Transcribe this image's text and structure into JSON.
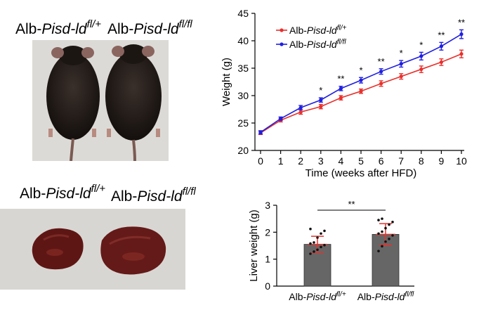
{
  "mice_panel": {
    "label_1": {
      "prefix": "Alb-",
      "gene": "Pisd-ld",
      "sup": "fl/+"
    },
    "label_2": {
      "prefix": "Alb-",
      "gene": "Pisd-ld",
      "sup": "fl/fl"
    }
  },
  "liver_panel": {
    "label_1": {
      "prefix": "Alb-",
      "gene": "Pisd-ld",
      "sup": "fl/+"
    },
    "label_2": {
      "prefix": "Alb-",
      "gene": "Pisd-ld",
      "sup": "fl/fl"
    }
  },
  "colors": {
    "control": "#e8302c",
    "knockout": "#1f1fe0",
    "bar": "#666666",
    "bar_error": "#e8302c"
  },
  "chart_data": [
    {
      "type": "line",
      "xlabel": "Time (weeks after HFD)",
      "ylabel": "Weight (g)",
      "x": [
        0,
        1,
        2,
        3,
        4,
        5,
        6,
        7,
        8,
        9,
        10
      ],
      "xlim": [
        0,
        10
      ],
      "ylim": [
        20,
        45
      ],
      "yticks": [
        20,
        25,
        30,
        35,
        40,
        45
      ],
      "legend_position": "top-left",
      "series": [
        {
          "name": "Alb-Pisd-ld fl/+",
          "legend": {
            "prefix": "Alb-",
            "gene": "Pisd-ld",
            "sup": "fl/+"
          },
          "color": "#e8302c",
          "values": [
            23.2,
            25.5,
            27.0,
            28.0,
            29.6,
            30.8,
            32.2,
            33.5,
            34.8,
            36.1,
            37.6
          ],
          "errors": [
            0.3,
            0.3,
            0.4,
            0.4,
            0.4,
            0.4,
            0.5,
            0.5,
            0.6,
            0.6,
            0.7
          ]
        },
        {
          "name": "Alb-Pisd-ld fl/fl",
          "legend": {
            "prefix": "Alb-",
            "gene": "Pisd-ld",
            "sup": "fl/fl"
          },
          "color": "#1f1fe0",
          "values": [
            23.3,
            25.8,
            27.8,
            29.2,
            31.3,
            32.8,
            34.4,
            35.8,
            37.2,
            39.0,
            41.2
          ],
          "errors": [
            0.3,
            0.3,
            0.4,
            0.4,
            0.4,
            0.5,
            0.5,
            0.6,
            0.7,
            0.7,
            0.8
          ]
        }
      ],
      "significance": [
        "",
        "",
        "",
        "*",
        "**",
        "*",
        "**",
        "*",
        "*",
        "**",
        "**"
      ]
    },
    {
      "type": "bar",
      "ylabel": "Liver weight (g)",
      "ylim": [
        0,
        3
      ],
      "yticks": [
        0,
        1,
        2,
        3
      ],
      "categories": [
        {
          "prefix": "Alb-",
          "gene": "Pisd-ld",
          "sup": "fl/+"
        },
        {
          "prefix": "Alb-",
          "gene": "Pisd-ld",
          "sup": "fl/fl"
        }
      ],
      "values": [
        1.55,
        1.92
      ],
      "errors": [
        0.3,
        0.4
      ],
      "points": [
        [
          1.2,
          1.28,
          1.35,
          1.45,
          1.52,
          1.58,
          1.62,
          1.8,
          1.95,
          2.05,
          2.12
        ],
        [
          1.3,
          1.48,
          1.65,
          1.75,
          1.88,
          1.95,
          2.02,
          2.15,
          2.28,
          2.38,
          2.45,
          2.5
        ]
      ],
      "significance": "**"
    }
  ]
}
